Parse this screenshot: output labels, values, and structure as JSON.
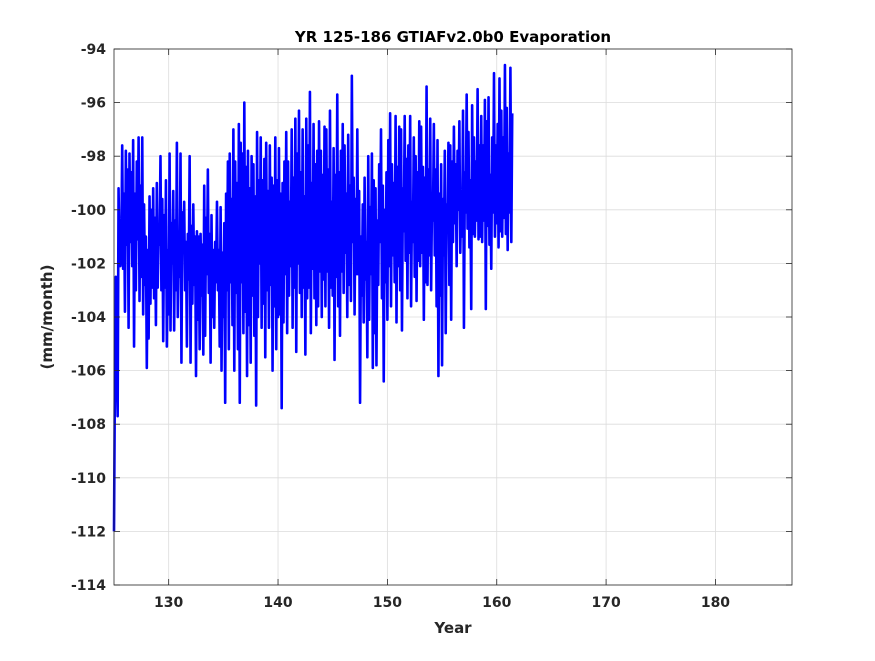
{
  "chart_data": {
    "type": "line",
    "title": "YR 125-186 GTIAFv2.0b0 Evaporation",
    "xlabel": "Year",
    "ylabel": "(mm/month)",
    "xlim": [
      125,
      187
    ],
    "ylim": [
      -114,
      -94
    ],
    "x_ticks": [
      130,
      140,
      150,
      160,
      170,
      180
    ],
    "y_ticks": [
      -114,
      -112,
      -110,
      -108,
      -106,
      -104,
      -102,
      -100,
      -98,
      -96,
      -94
    ],
    "x_tick_labels": [
      "130",
      "140",
      "150",
      "160",
      "170",
      "180"
    ],
    "y_tick_labels": [
      "-114",
      "-112",
      "-110",
      "-108",
      "-106",
      "-104",
      "-102",
      "-100",
      "-98",
      "-96",
      "-94"
    ],
    "grid": true,
    "series": [
      {
        "color": "#0000ff",
        "x_start": 125.0,
        "x_step": 0.0833333,
        "values": [
          -112.0,
          -106.3,
          -102.5,
          -105.8,
          -107.7,
          -99.2,
          -101.8,
          -102.1,
          -101.5,
          -97.6,
          -102.2,
          -99.4,
          -103.8,
          -97.8,
          -101.3,
          -98.5,
          -104.4,
          -97.9,
          -101.2,
          -98.6,
          -102.1,
          -97.4,
          -105.1,
          -99.4,
          -103.0,
          -98.2,
          -101.1,
          -97.3,
          -103.4,
          -99.1,
          -102.5,
          -97.3,
          -103.9,
          -99.8,
          -102.8,
          -101.0,
          -105.9,
          -101.5,
          -104.8,
          -99.5,
          -103.5,
          -100.0,
          -102.9,
          -99.2,
          -103.3,
          -100.3,
          -104.3,
          -99.0,
          -102.9,
          -100.6,
          -101.3,
          -98.0,
          -103.0,
          -99.6,
          -104.9,
          -100.2,
          -102.9,
          -98.9,
          -105.1,
          -101.5,
          -103.9,
          -97.9,
          -104.5,
          -100.5,
          -102.0,
          -99.3,
          -104.5,
          -100.4,
          -103.0,
          -97.5,
          -104.0,
          -101.2,
          -102.5,
          -97.9,
          -105.7,
          -100.1,
          -101.6,
          -99.7,
          -103.0,
          -101.2,
          -105.1,
          -100.9,
          -102.6,
          -98.0,
          -105.7,
          -100.6,
          -103.5,
          -99.8,
          -102.8,
          -101.0,
          -106.2,
          -100.8,
          -104.1,
          -101.0,
          -105.2,
          -100.9,
          -103.2,
          -101.3,
          -105.4,
          -99.1,
          -104.7,
          -100.3,
          -102.4,
          -98.5,
          -103.1,
          -100.9,
          -105.7,
          -100.2,
          -104.0,
          -101.5,
          -104.4,
          -101.2,
          -102.7,
          -99.7,
          -103.0,
          -101.5,
          -105.1,
          -99.9,
          -106.0,
          -101.6,
          -104.0,
          -100.5,
          -107.2,
          -99.4,
          -103.0,
          -98.2,
          -105.2,
          -97.9,
          -102.7,
          -99.6,
          -104.3,
          -97.0,
          -106.0,
          -98.2,
          -103.1,
          -99.0,
          -105.2,
          -96.8,
          -107.2,
          -97.5,
          -102.7,
          -97.9,
          -104.6,
          -96.0,
          -103.8,
          -98.4,
          -106.2,
          -97.8,
          -104.3,
          -99.2,
          -105.7,
          -98.0,
          -103.2,
          -98.3,
          -104.7,
          -99.5,
          -107.3,
          -97.1,
          -104.0,
          -98.9,
          -102.0,
          -97.3,
          -104.4,
          -98.9,
          -103.5,
          -98.1,
          -105.5,
          -97.5,
          -103.0,
          -99.3,
          -104.4,
          -97.6,
          -102.8,
          -98.8,
          -106.0,
          -99.1,
          -103.6,
          -97.3,
          -105.2,
          -98.9,
          -104.0,
          -97.7,
          -103.9,
          -99.4,
          -107.4,
          -99.0,
          -104.2,
          -98.2,
          -102.4,
          -97.1,
          -104.6,
          -98.2,
          -103.2,
          -99.7,
          -102.1,
          -97.0,
          -104.4,
          -98.8,
          -102.9,
          -96.6,
          -105.3,
          -97.9,
          -102.0,
          -96.3,
          -103.1,
          -98.6,
          -104.0,
          -97.0,
          -102.9,
          -99.5,
          -105.4,
          -96.6,
          -103.3,
          -97.6,
          -102.9,
          -95.6,
          -104.6,
          -99.0,
          -102.2,
          -96.8,
          -103.3,
          -98.3,
          -104.3,
          -97.8,
          -103.6,
          -96.7,
          -102.3,
          -97.8,
          -104.0,
          -98.7,
          -102.6,
          -96.9,
          -103.6,
          -97.0,
          -102.3,
          -98.5,
          -104.4,
          -96.3,
          -102.9,
          -99.7,
          -103.2,
          -97.7,
          -105.6,
          -98.7,
          -102.5,
          -95.7,
          -103.6,
          -98.6,
          -104.7,
          -97.8,
          -102.3,
          -96.8,
          -103.1,
          -97.6,
          -101.6,
          -99.4,
          -104.0,
          -97.2,
          -102.8,
          -99.1,
          -103.4,
          -95.0,
          -101.2,
          -98.8,
          -103.9,
          -99.6,
          -102.4,
          -97.0,
          -102.4,
          -99.3,
          -107.2,
          -101.0,
          -103.2,
          -99.8,
          -104.2,
          -98.8,
          -102.6,
          -101.2,
          -105.5,
          -98.0,
          -104.1,
          -99.9,
          -102.4,
          -97.9,
          -105.9,
          -98.9,
          -104.6,
          -99.2,
          -105.8,
          -100.4,
          -102.8,
          -98.3,
          -101.2,
          -97.0,
          -103.3,
          -99.1,
          -106.4,
          -100.0,
          -102.7,
          -98.6,
          -104.1,
          -97.4,
          -102.1,
          -96.4,
          -103.6,
          -98.3,
          -101.7,
          -99.0,
          -102.7,
          -96.5,
          -104.2,
          -98.4,
          -102.1,
          -96.9,
          -103.0,
          -97.0,
          -104.5,
          -99.2,
          -100.8,
          -96.5,
          -101.9,
          -98.1,
          -103.3,
          -97.6,
          -101.6,
          -96.5,
          -103.6,
          -99.7,
          -101.2,
          -97.3,
          -102.5,
          -98.0,
          -103.4,
          -98.6,
          -101.9,
          -96.7,
          -102.1,
          -96.9,
          -101.6,
          -98.4,
          -104.1,
          -98.8,
          -102.7,
          -95.4,
          -102.8,
          -98.5,
          -101.7,
          -96.6,
          -103.0,
          -99.5,
          -100.4,
          -96.8,
          -101.7,
          -98.5,
          -103.6,
          -97.4,
          -106.2,
          -99.4,
          -103.2,
          -98.3,
          -105.8,
          -99.6,
          -101.7,
          -97.8,
          -104.6,
          -99.8,
          -100.8,
          -97.5,
          -102.8,
          -97.6,
          -104.1,
          -98.2,
          -101.2,
          -96.9,
          -100.5,
          -98.3,
          -102.1,
          -97.8,
          -100.0,
          -96.7,
          -101.6,
          -99.4,
          -101.0,
          -96.3,
          -104.4,
          -98.6,
          -100.1,
          -95.7,
          -100.7,
          -97.1,
          -101.4,
          -98.9,
          -103.7,
          -96.1,
          -100.9,
          -97.3,
          -101.0,
          -98.2,
          -100.4,
          -95.5,
          -101.1,
          -97.6,
          -101.0,
          -96.5,
          -101.2,
          -97.6,
          -100.4,
          -95.9,
          -103.7,
          -96.7,
          -100.6,
          -95.8,
          -101.3,
          -98.7,
          -102.2,
          -97.3,
          -100.1,
          -94.9,
          -101.0,
          -97.6,
          -100.5,
          -96.8,
          -101.4,
          -95.1,
          -100.8,
          -96.3,
          -101.0,
          -97.3,
          -100.3,
          -94.6,
          -100.9,
          -96.2,
          -101.5,
          -97.9,
          -100.1,
          -94.7,
          -101.2,
          -96.4
        ]
      }
    ]
  }
}
